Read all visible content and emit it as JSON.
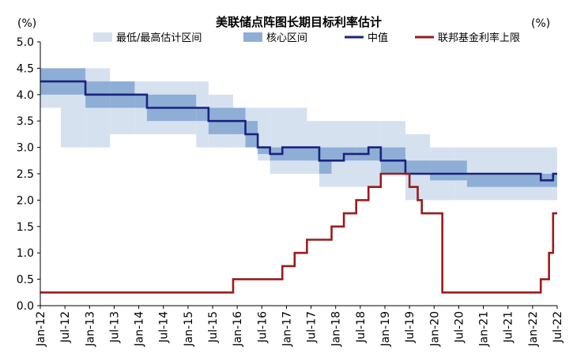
{
  "chart_data": {
    "type": "line",
    "title": "美联储点阵图长期目标利率估计",
    "unit_left": "(%)",
    "unit_right": "(%)",
    "ylim": [
      0.0,
      5.0
    ],
    "y_ticks": [
      "0.0",
      "0.5",
      "1.0",
      "1.5",
      "2.0",
      "2.5",
      "3.0",
      "3.5",
      "4.0",
      "4.5",
      "5.0"
    ],
    "x_ticks": [
      "Jan-12",
      "Jul-12",
      "Jan-13",
      "Jul-13",
      "Jan-14",
      "Jul-14",
      "Jan-15",
      "Jul-15",
      "Jan-16",
      "Jul-16",
      "Jan-17",
      "Jul-17",
      "Jan-18",
      "Jul-18",
      "Jan-19",
      "Jul-19",
      "Jan-20",
      "Jul-20",
      "Jan-21",
      "Jul-21",
      "Jan-22",
      "Jul-22"
    ],
    "xlim": [
      "2012-01",
      "2022-07"
    ],
    "grid": false,
    "legend_position": "top",
    "legend": [
      {
        "name": "最低/最高估计区间",
        "kind": "band",
        "color": "#d6e1f0"
      },
      {
        "name": "核心区间",
        "kind": "band",
        "color": "#8eaed6"
      },
      {
        "name": "中值",
        "kind": "line",
        "color": "#1a237e"
      },
      {
        "name": "联邦基金利率上限",
        "kind": "line",
        "color": "#9b1b1b"
      }
    ],
    "series": [
      {
        "name": "中值",
        "color": "#1a237e",
        "step": [
          [
            "2012-01",
            4.25
          ],
          [
            "2012-12",
            4.0
          ],
          [
            "2014-03",
            3.75
          ],
          [
            "2015-06",
            3.5
          ],
          [
            "2016-03",
            3.25
          ],
          [
            "2016-06",
            3.0
          ],
          [
            "2016-09",
            2.875
          ],
          [
            "2016-12",
            3.0
          ],
          [
            "2017-09",
            2.75
          ],
          [
            "2018-03",
            2.875
          ],
          [
            "2018-09",
            3.0
          ],
          [
            "2018-12",
            2.75
          ],
          [
            "2019-06",
            2.5
          ],
          [
            "2022-03",
            2.375
          ],
          [
            "2022-06",
            2.5
          ]
        ]
      },
      {
        "name": "联邦基金利率上限",
        "color": "#9b1b1b",
        "step": [
          [
            "2012-01",
            0.25
          ],
          [
            "2015-12",
            0.5
          ],
          [
            "2016-12",
            0.75
          ],
          [
            "2017-03",
            1.0
          ],
          [
            "2017-06",
            1.25
          ],
          [
            "2017-12",
            1.5
          ],
          [
            "2018-03",
            1.75
          ],
          [
            "2018-06",
            2.0
          ],
          [
            "2018-09",
            2.25
          ],
          [
            "2018-12",
            2.5
          ],
          [
            "2019-07",
            2.25
          ],
          [
            "2019-09",
            2.0
          ],
          [
            "2019-10",
            1.75
          ],
          [
            "2020-03",
            1.25
          ],
          [
            "2020-03",
            0.25
          ],
          [
            "2022-03",
            0.5
          ],
          [
            "2022-05",
            1.0
          ],
          [
            "2022-06",
            1.75
          ]
        ]
      },
      {
        "name": "核心区间",
        "color": "#8eaed6",
        "bands": [
          {
            "from": "2012-01",
            "to": "2012-12",
            "low": 4.0,
            "high": 4.5
          },
          {
            "from": "2012-12",
            "to": "2013-06",
            "low": 3.75,
            "high": 4.25
          },
          {
            "from": "2013-06",
            "to": "2013-12",
            "low": 3.75,
            "high": 4.25
          },
          {
            "from": "2013-12",
            "to": "2014-03",
            "low": 3.75,
            "high": 4.0
          },
          {
            "from": "2014-03",
            "to": "2015-03",
            "low": 3.5,
            "high": 4.0
          },
          {
            "from": "2015-03",
            "to": "2015-06",
            "low": 3.5,
            "high": 3.75
          },
          {
            "from": "2015-06",
            "to": "2016-03",
            "low": 3.25,
            "high": 3.75
          },
          {
            "from": "2016-03",
            "to": "2016-06",
            "low": 3.0,
            "high": 3.5
          },
          {
            "from": "2016-06",
            "to": "2016-09",
            "low": 2.875,
            "high": 3.0
          },
          {
            "from": "2016-09",
            "to": "2017-09",
            "low": 2.75,
            "high": 3.0
          },
          {
            "from": "2017-09",
            "to": "2017-12",
            "low": 2.5,
            "high": 3.0
          },
          {
            "from": "2017-12",
            "to": "2018-06",
            "low": 2.75,
            "high": 3.0
          },
          {
            "from": "2018-06",
            "to": "2018-12",
            "low": 2.75,
            "high": 3.0
          },
          {
            "from": "2018-12",
            "to": "2019-06",
            "low": 2.5,
            "high": 3.0
          },
          {
            "from": "2019-06",
            "to": "2019-12",
            "low": 2.5,
            "high": 2.75
          },
          {
            "from": "2019-12",
            "to": "2020-09",
            "low": 2.375,
            "high": 2.75
          },
          {
            "from": "2020-09",
            "to": "2022-07",
            "low": 2.25,
            "high": 2.5
          }
        ]
      },
      {
        "name": "最低/最高估计区间",
        "color": "#d6e1f0",
        "bands": [
          {
            "from": "2012-01",
            "to": "2012-06",
            "low": 3.75,
            "high": 4.5
          },
          {
            "from": "2012-06",
            "to": "2012-12",
            "low": 3.0,
            "high": 4.5
          },
          {
            "from": "2012-12",
            "to": "2013-06",
            "low": 3.0,
            "high": 4.5
          },
          {
            "from": "2013-06",
            "to": "2013-12",
            "low": 3.25,
            "high": 4.25
          },
          {
            "from": "2013-12",
            "to": "2015-03",
            "low": 3.25,
            "high": 4.25
          },
          {
            "from": "2015-03",
            "to": "2015-06",
            "low": 3.0,
            "high": 4.25
          },
          {
            "from": "2015-06",
            "to": "2015-12",
            "low": 3.0,
            "high": 4.0
          },
          {
            "from": "2015-12",
            "to": "2016-06",
            "low": 3.0,
            "high": 3.75
          },
          {
            "from": "2016-06",
            "to": "2016-09",
            "low": 2.75,
            "high": 3.75
          },
          {
            "from": "2016-09",
            "to": "2017-06",
            "low": 2.5,
            "high": 3.75
          },
          {
            "from": "2017-06",
            "to": "2017-09",
            "low": 2.5,
            "high": 3.5
          },
          {
            "from": "2017-09",
            "to": "2018-12",
            "low": 2.25,
            "high": 3.5
          },
          {
            "from": "2018-12",
            "to": "2019-06",
            "low": 2.5,
            "high": 3.5
          },
          {
            "from": "2019-06",
            "to": "2019-12",
            "low": 2.0,
            "high": 3.25
          },
          {
            "from": "2019-12",
            "to": "2020-06",
            "low": 2.0,
            "high": 3.0
          },
          {
            "from": "2020-06",
            "to": "2022-07",
            "low": 2.0,
            "high": 3.0
          }
        ]
      }
    ]
  }
}
